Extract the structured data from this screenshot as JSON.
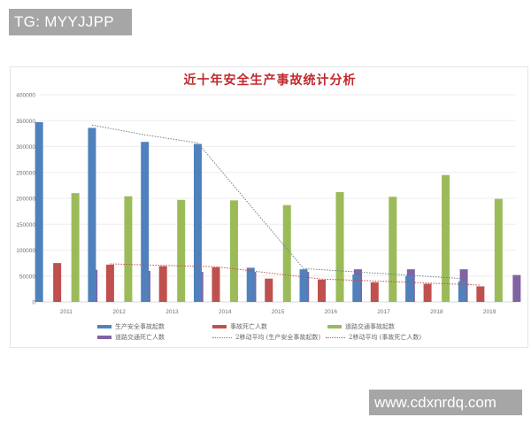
{
  "watermarks": {
    "top_left": "TG: MYYJJPP",
    "bottom_right": "www.cdxnrdq.com"
  },
  "chart_data": {
    "type": "bar",
    "title": "近十年安全生产事故统计分析",
    "xlabel": "",
    "ylabel": "",
    "ylim": [
      0,
      400000
    ],
    "yticks": [
      "0",
      "50000",
      "100000",
      "150000",
      "200000",
      "250000",
      "300000",
      "350000",
      "400000"
    ],
    "grid": true,
    "legend_position": "bottom",
    "categories": [
      "2011",
      "2012",
      "2013",
      "2014",
      "2015",
      "2016",
      "2017",
      "2018",
      "2019"
    ],
    "series": [
      {
        "name": "生产安全事故起数",
        "kind": "bar",
        "color": "#4f81bd",
        "values": [
          347000,
          336000,
          309000,
          305000,
          66000,
          63000,
          53000,
          50000,
          40000
        ]
      },
      {
        "name": "事故死亡人数",
        "kind": "bar",
        "color": "#c0504d",
        "values": [
          75000,
          72000,
          69000,
          67000,
          45000,
          43000,
          38000,
          35000,
          30000
        ]
      },
      {
        "name": "道路交通事故起数",
        "kind": "bar",
        "color": "#9bbb59",
        "values": [
          210000,
          204000,
          197000,
          196000,
          187000,
          212000,
          203000,
          245000,
          199000
        ]
      },
      {
        "name": "道路交通死亡人数",
        "kind": "bar",
        "color": "#8064a2",
        "values": [
          62000,
          60000,
          58000,
          58000,
          58000,
          63000,
          63000,
          63000,
          52000
        ]
      },
      {
        "name": "2移动平均 (生产安全事故起数)",
        "kind": "trendline",
        "color": "#6e7f8f",
        "style": "dotted",
        "values": [
          null,
          341500,
          322500,
          307000,
          185500,
          64500,
          58000,
          51500,
          45000
        ]
      },
      {
        "name": "2移动平均 (事故死亡人数)",
        "kind": "trendline",
        "color": "#c0504d",
        "style": "dotted",
        "values": [
          null,
          73500,
          70500,
          68000,
          56000,
          44000,
          40500,
          36500,
          32500
        ]
      }
    ]
  }
}
